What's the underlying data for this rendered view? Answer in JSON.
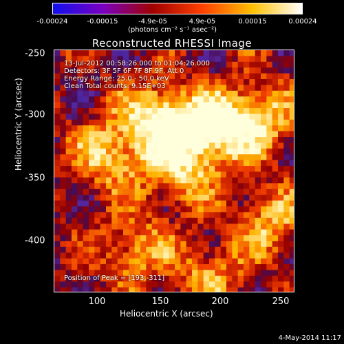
{
  "colorbar": {
    "ticks": [
      "-0.00024",
      "-0.00015",
      "-4.9e-05",
      "4.9e-05",
      "0.00015",
      "0.00024"
    ],
    "unit_label": "(photons cm⁻² s⁻¹ asec⁻²)",
    "colors": [
      "#1010f0",
      "#7a00c0",
      "#a00000",
      "#ff4000",
      "#ffc000",
      "#ffffff"
    ]
  },
  "chart_data": {
    "type": "heatmap",
    "title": "Reconstructed RHESSI Image",
    "xlabel": "Heliocentric X (arcsec)",
    "ylabel": "Heliocentric Y (arcsec)",
    "xlim": [
      65,
      260
    ],
    "ylim": [
      -445,
      -245
    ],
    "xticks": [
      "100",
      "150",
      "200",
      "250"
    ],
    "yticks": [
      "-250",
      "-300",
      "-350",
      "-400"
    ],
    "colorbar_range": [
      -0.00024,
      0.00024
    ],
    "annotations": [
      "13-Jul-2012 00:58:26.000 to 01:04:26.000",
      "Detectors: 3F 5F 6F 7F 8F 9F, Att 0",
      "Energy Range: 25.0 - 50.0 keV",
      "Clean     Total counts: 9.15E+03"
    ],
    "peak_label": "Position of Peak = [193,-311]",
    "peak_position": [
      193,
      -311
    ],
    "bright_sources": [
      {
        "x": 150,
        "y": -300,
        "level": 0.9
      },
      {
        "x": 193,
        "y": -311,
        "level": 1.0
      },
      {
        "x": 230,
        "y": -300,
        "level": 0.75
      },
      {
        "x": 110,
        "y": -330,
        "level": 0.7
      },
      {
        "x": 165,
        "y": -345,
        "level": 0.65
      },
      {
        "x": 240,
        "y": -385,
        "level": 0.6
      },
      {
        "x": 130,
        "y": -410,
        "level": 0.55
      },
      {
        "x": 190,
        "y": -430,
        "level": 0.5
      }
    ]
  },
  "timestamp": "4-May-2014 11:17"
}
